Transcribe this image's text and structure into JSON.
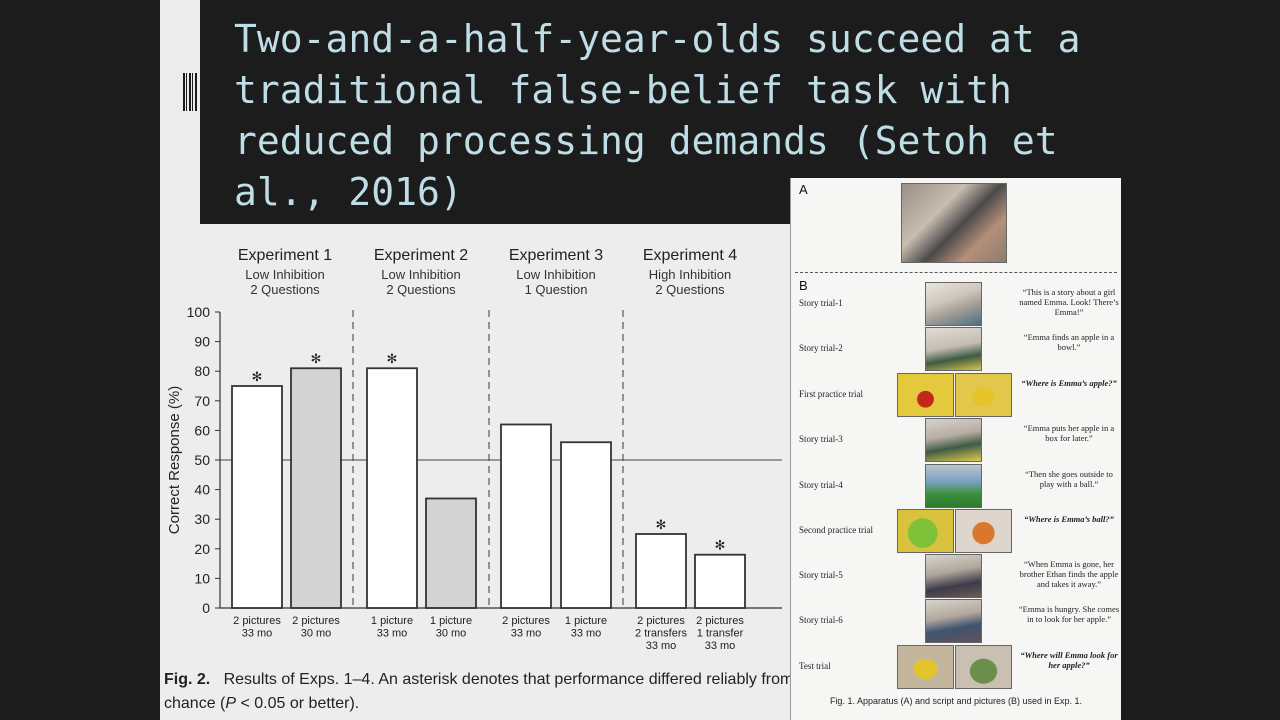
{
  "title": "Two-and-a-half-year-olds succeed at a traditional false-belief task with reduced processing demands (Setoh et al., 2016)",
  "figure2": {
    "caption_label": "Fig. 2.",
    "caption_text": "Results of Exps. 1–4. An asterisk denotes that performance differed reliably from chance (",
    "caption_p": "P",
    "caption_end": " < 0.05 or better).",
    "experiments": [
      {
        "title": "Experiment 1",
        "line1": "Low Inhibition",
        "line2": "2 Questions"
      },
      {
        "title": "Experiment 2",
        "line1": "Low Inhibition",
        "line2": "2 Questions"
      },
      {
        "title": "Experiment 3",
        "line1": "Low Inhibition",
        "line2": "1 Question"
      },
      {
        "title": "Experiment 4",
        "line1": "High Inhibition",
        "line2": "2 Questions"
      }
    ]
  },
  "chart_data": {
    "type": "bar",
    "ylabel": "Correct Response (%)",
    "ylim": [
      0,
      100
    ],
    "yticks": [
      0,
      10,
      20,
      30,
      40,
      50,
      60,
      70,
      80,
      90,
      100
    ],
    "chance_line": 50,
    "bars": [
      {
        "value": 75,
        "fill": "white",
        "star": true,
        "label": [
          "2 pictures",
          "33 mo"
        ]
      },
      {
        "value": 81,
        "fill": "grey",
        "star": true,
        "label": [
          "2 pictures",
          "30 mo"
        ]
      },
      {
        "value": 81,
        "fill": "white",
        "star": true,
        "label": [
          "1 picture",
          "33 mo"
        ]
      },
      {
        "value": 37,
        "fill": "grey",
        "star": false,
        "label": [
          "1 picture",
          "30 mo"
        ]
      },
      {
        "value": 62,
        "fill": "white",
        "star": false,
        "label": [
          "2 pictures",
          "33 mo"
        ]
      },
      {
        "value": 56,
        "fill": "white",
        "star": false,
        "label": [
          "1 picture",
          "33 mo"
        ]
      },
      {
        "value": 25,
        "fill": "white",
        "star": true,
        "label": [
          "2 pictures",
          "2 transfers",
          "33 mo"
        ]
      },
      {
        "value": 18,
        "fill": "white",
        "star": true,
        "label": [
          "2 pictures",
          "1 transfer",
          "33 mo"
        ]
      }
    ],
    "star_symbol": "✻",
    "colors": {
      "white": "#ffffff",
      "grey": "#d3d3d3",
      "stroke": "#333333"
    }
  },
  "figure1": {
    "panel_a": "A",
    "panel_b": "B",
    "caption": "Fig. 1.   Apparatus (A) and script and pictures (B) used in Exp. 1.",
    "rows": [
      {
        "label": "Story trial-1",
        "text": "“This is a story about a girl named Emma. Look! There’s Emma!”",
        "question": false
      },
      {
        "label": "Story trial-2",
        "text": "“Emma finds an apple in a bowl.”",
        "question": false
      },
      {
        "label": "First practice trial",
        "text": "“Where is Emma’s apple?”",
        "question": true
      },
      {
        "label": "Story trial-3",
        "text": "“Emma puts her apple in a box for later.”",
        "question": false
      },
      {
        "label": "Story trial-4",
        "text": "“Then she goes outside to play with a ball.”",
        "question": false
      },
      {
        "label": "Second practice trial",
        "text": "“Where is Emma’s ball?”",
        "question": true
      },
      {
        "label": "Story trial-5",
        "text": "“When Emma is gone, her brother Ethan finds the apple and takes it away.”",
        "question": false
      },
      {
        "label": "Story trial-6",
        "text": "“Emma is hungry. She comes in to look for her apple.”",
        "question": false
      },
      {
        "label": "Test trial",
        "text": "“Where will Emma look for her apple?”",
        "question": true
      }
    ]
  }
}
